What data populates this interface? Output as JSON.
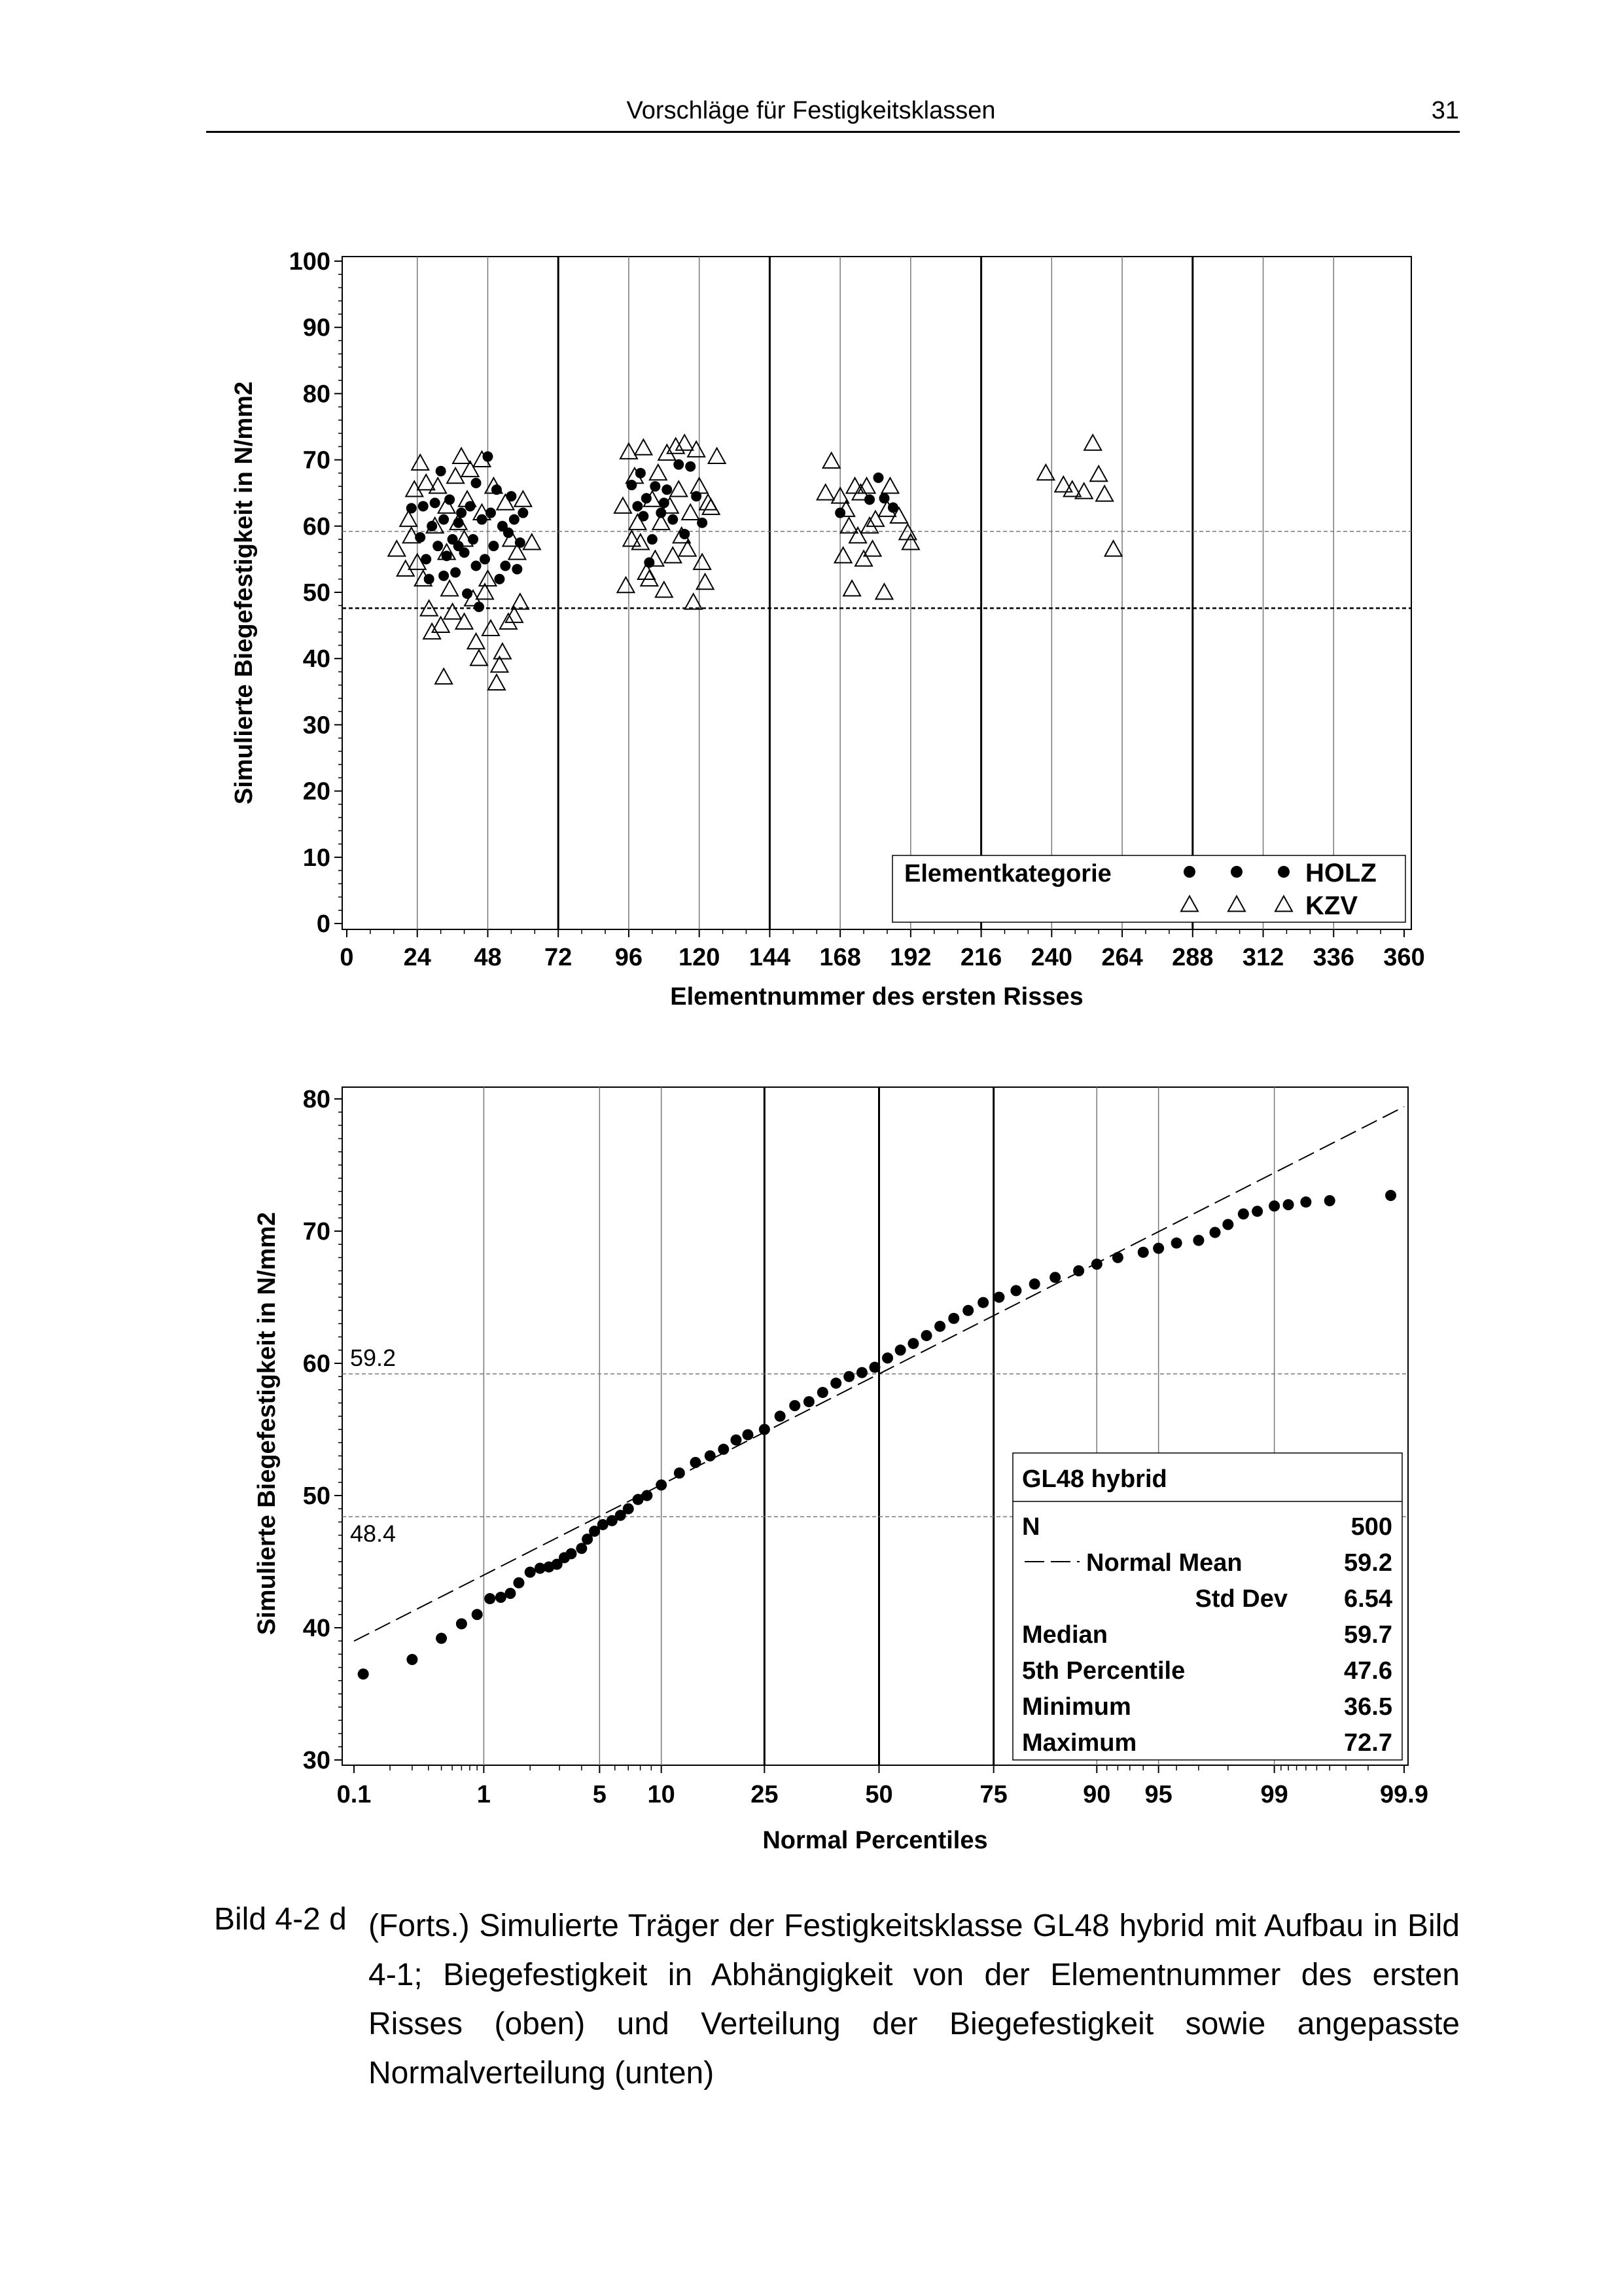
{
  "header": {
    "title": "Vorschläge für Festigkeitsklassen",
    "page_number": "31"
  },
  "caption": {
    "label": "Bild 4-2 d",
    "text": "(Forts.) Simulierte Träger der Festigkeitsklasse GL48 hybrid mit Aufbau in Bild 4-1; Biegefestigkeit in Abhängigkeit von der Elementnummer des ersten Risses (oben) und Verteilung der Biegefestigkeit sowie angepasste Normalverteilung (unten)"
  },
  "chart_data": [
    {
      "type": "scatter",
      "xlabel": "Elementnummer des ersten Risses",
      "ylabel": "Simulierte Biegefestigkeit in N/mm2",
      "xlim": [
        0,
        360
      ],
      "ylim": [
        0,
        100
      ],
      "xticks": [
        "0",
        "24",
        "48",
        "72",
        "96",
        "120",
        "144",
        "168",
        "192",
        "216",
        "240",
        "264",
        "288",
        "312",
        "336",
        "360"
      ],
      "yticks": [
        "0",
        "10",
        "20",
        "30",
        "40",
        "50",
        "60",
        "70",
        "80",
        "90",
        "100"
      ],
      "grid": "vertical lines every 24, heavier every 72",
      "reference_lines": [
        59.2,
        47.6
      ],
      "legend": {
        "title": "Elementkategorie",
        "placement": "bottom-right",
        "entries": [
          {
            "name": "HOLZ",
            "marker": "filled-circle"
          },
          {
            "name": "KZV",
            "marker": "open-triangle"
          }
        ]
      },
      "series": [
        {
          "name": "HOLZ",
          "points": [
            [
              22,
              62.7
            ],
            [
              25,
              58.3
            ],
            [
              26,
              63
            ],
            [
              27,
              55
            ],
            [
              28,
              52
            ],
            [
              29,
              60
            ],
            [
              30,
              63.5
            ],
            [
              31,
              57
            ],
            [
              32,
              68.3
            ],
            [
              33,
              61
            ],
            [
              34,
              55.5
            ],
            [
              35,
              64
            ],
            [
              36,
              58
            ],
            [
              37,
              53
            ],
            [
              38,
              60.5
            ],
            [
              39,
              62
            ],
            [
              40,
              56
            ],
            [
              41,
              49.8
            ],
            [
              42,
              63
            ],
            [
              43,
              58
            ],
            [
              44,
              66.5
            ],
            [
              45,
              47.8
            ],
            [
              46,
              61
            ],
            [
              47,
              55
            ],
            [
              48,
              70.5
            ],
            [
              49,
              62
            ],
            [
              50,
              57
            ],
            [
              51,
              65.5
            ],
            [
              52,
              52
            ],
            [
              53,
              60
            ],
            [
              54,
              54
            ],
            [
              55,
              59
            ],
            [
              56,
              64.5
            ],
            [
              57,
              61
            ],
            [
              58,
              53.5
            ],
            [
              59,
              57.5
            ],
            [
              60,
              62
            ],
            [
              44,
              54
            ],
            [
              38,
              57
            ],
            [
              33,
              52.5
            ],
            [
              97,
              66.2
            ],
            [
              99,
              63
            ],
            [
              100,
              68
            ],
            [
              101,
              61.5
            ],
            [
              102,
              64.2
            ],
            [
              103,
              54.5
            ],
            [
              105,
              66
            ],
            [
              107,
              62
            ],
            [
              109,
              65.5
            ],
            [
              111,
              61
            ],
            [
              113,
              69.3
            ],
            [
              115,
              58.8
            ],
            [
              117,
              69
            ],
            [
              119,
              64.5
            ],
            [
              121,
              60.5
            ],
            [
              108,
              63.5
            ],
            [
              104,
              58
            ],
            [
              168,
              62
            ],
            [
              178,
              64
            ],
            [
              181,
              67.3
            ],
            [
              183,
              64.2
            ],
            [
              186,
              62.8
            ]
          ]
        },
        {
          "name": "KZV",
          "points": [
            [
              17,
              56.5
            ],
            [
              20,
              53.5
            ],
            [
              21,
              61
            ],
            [
              22,
              58.5
            ],
            [
              23,
              65.5
            ],
            [
              24,
              54.5
            ],
            [
              25,
              69.5
            ],
            [
              26,
              52
            ],
            [
              27,
              66.5
            ],
            [
              28,
              47.5
            ],
            [
              29,
              44
            ],
            [
              30,
              60
            ],
            [
              31,
              66
            ],
            [
              32,
              45
            ],
            [
              33,
              37.2
            ],
            [
              34,
              63
            ],
            [
              35,
              50.5
            ],
            [
              36,
              47
            ],
            [
              37,
              67.5
            ],
            [
              38,
              60.5
            ],
            [
              39,
              70.5
            ],
            [
              40,
              45.5
            ],
            [
              41,
              64
            ],
            [
              42,
              68.5
            ],
            [
              43,
              49
            ],
            [
              44,
              42.5
            ],
            [
              45,
              40
            ],
            [
              46,
              62
            ],
            [
              47,
              50
            ],
            [
              48,
              52
            ],
            [
              49,
              44.5
            ],
            [
              50,
              66
            ],
            [
              51,
              36.3
            ],
            [
              52,
              39
            ],
            [
              53,
              41
            ],
            [
              54,
              63.5
            ],
            [
              55,
              45.5
            ],
            [
              56,
              58
            ],
            [
              57,
              46.5
            ],
            [
              58,
              56
            ],
            [
              59,
              48.5
            ],
            [
              60,
              64
            ],
            [
              63,
              57.5
            ],
            [
              46,
              70
            ],
            [
              40,
              58
            ],
            [
              34,
              56
            ],
            [
              94,
              63
            ],
            [
              95,
              51
            ],
            [
              96,
              71.2
            ],
            [
              97,
              58
            ],
            [
              98,
              67.5
            ],
            [
              99,
              60.5
            ],
            [
              100,
              57.5
            ],
            [
              101,
              71.8
            ],
            [
              102,
              53
            ],
            [
              103,
              52
            ],
            [
              104,
              64
            ],
            [
              105,
              55
            ],
            [
              106,
              68
            ],
            [
              107,
              60.5
            ],
            [
              108,
              50.3
            ],
            [
              109,
              71
            ],
            [
              110,
              63
            ],
            [
              111,
              55.5
            ],
            [
              112,
              72
            ],
            [
              113,
              65.5
            ],
            [
              114,
              58.5
            ],
            [
              115,
              72.5
            ],
            [
              116,
              56.5
            ],
            [
              117,
              62
            ],
            [
              118,
              48.5
            ],
            [
              119,
              71.5
            ],
            [
              120,
              66
            ],
            [
              121,
              54.5
            ],
            [
              122,
              51.5
            ],
            [
              123,
              63.5
            ],
            [
              124,
              62.8
            ],
            [
              126,
              70.5
            ],
            [
              163,
              65
            ],
            [
              165,
              69.8
            ],
            [
              168,
              64.5
            ],
            [
              169,
              55.5
            ],
            [
              170,
              62.5
            ],
            [
              171,
              60
            ],
            [
              172,
              50.5
            ],
            [
              173,
              66
            ],
            [
              174,
              58.5
            ],
            [
              175,
              65
            ],
            [
              176,
              55
            ],
            [
              177,
              66
            ],
            [
              178,
              60
            ],
            [
              179,
              56.5
            ],
            [
              180,
              61
            ],
            [
              183,
              50
            ],
            [
              184,
              62.5
            ],
            [
              185,
              66
            ],
            [
              188,
              61.5
            ],
            [
              191,
              59
            ],
            [
              192,
              57.5
            ],
            [
              238,
              68
            ],
            [
              244,
              66.2
            ],
            [
              247,
              65.5
            ],
            [
              251,
              65.2
            ],
            [
              254,
              72.5
            ],
            [
              256,
              67.8
            ],
            [
              258,
              64.8
            ],
            [
              261,
              56.5
            ]
          ]
        }
      ]
    },
    {
      "type": "scatter",
      "subtype": "normal probability plot",
      "xlabel": "Normal Percentiles",
      "ylabel": "Simulierte Biegefestigkeit in N/mm2",
      "xscale": "normal-probability",
      "xticks": [
        "0.1",
        "1",
        "5",
        "10",
        "25",
        "50",
        "75",
        "90",
        "95",
        "99",
        "99.9"
      ],
      "xlim": [
        0.1,
        99.9
      ],
      "ylim": [
        30,
        80
      ],
      "yticks": [
        "30",
        "40",
        "50",
        "60",
        "70",
        "80"
      ],
      "reference_lines": [
        {
          "value": 59.2,
          "label": "59.2"
        },
        {
          "value": 48.4,
          "label": "48.4"
        }
      ],
      "fitted_line": {
        "name": "Normal",
        "style": "dashed",
        "mean": 59.2,
        "std_dev": 6.54
      },
      "points": [
        [
          0.12,
          36.5
        ],
        [
          0.3,
          37.6
        ],
        [
          0.5,
          39.2
        ],
        [
          0.7,
          40.3
        ],
        [
          0.9,
          41.0
        ],
        [
          1.1,
          42.2
        ],
        [
          1.3,
          42.3
        ],
        [
          1.5,
          42.6
        ],
        [
          1.7,
          43.4
        ],
        [
          2.0,
          44.2
        ],
        [
          2.3,
          44.5
        ],
        [
          2.6,
          44.6
        ],
        [
          2.9,
          44.8
        ],
        [
          3.2,
          45.3
        ],
        [
          3.5,
          45.6
        ],
        [
          4.0,
          46.0
        ],
        [
          4.3,
          46.7
        ],
        [
          4.7,
          47.3
        ],
        [
          5.2,
          47.8
        ],
        [
          5.8,
          48.1
        ],
        [
          6.4,
          48.5
        ],
        [
          7.0,
          49.0
        ],
        [
          7.8,
          49.7
        ],
        [
          8.6,
          50.0
        ],
        [
          10,
          50.8
        ],
        [
          12,
          51.7
        ],
        [
          14,
          52.5
        ],
        [
          16,
          53.0
        ],
        [
          18,
          53.5
        ],
        [
          20,
          54.2
        ],
        [
          22,
          54.6
        ],
        [
          25,
          55.0
        ],
        [
          28,
          56.0
        ],
        [
          31,
          56.8
        ],
        [
          34,
          57.1
        ],
        [
          37,
          57.8
        ],
        [
          40,
          58.5
        ],
        [
          43,
          59.0
        ],
        [
          46,
          59.3
        ],
        [
          49,
          59.7
        ],
        [
          52,
          60.4
        ],
        [
          55,
          61.0
        ],
        [
          58,
          61.5
        ],
        [
          61,
          62.1
        ],
        [
          64,
          62.8
        ],
        [
          67,
          63.4
        ],
        [
          70,
          64.0
        ],
        [
          73,
          64.6
        ],
        [
          76,
          65.0
        ],
        [
          79,
          65.5
        ],
        [
          82,
          66.0
        ],
        [
          85,
          66.5
        ],
        [
          88,
          67.0
        ],
        [
          90,
          67.5
        ],
        [
          92,
          68.0
        ],
        [
          94,
          68.4
        ],
        [
          95,
          68.7
        ],
        [
          96,
          69.1
        ],
        [
          97,
          69.3
        ],
        [
          97.6,
          69.9
        ],
        [
          98.0,
          70.5
        ],
        [
          98.4,
          71.3
        ],
        [
          98.7,
          71.5
        ],
        [
          99.0,
          71.9
        ],
        [
          99.2,
          72.0
        ],
        [
          99.4,
          72.2
        ],
        [
          99.6,
          72.3
        ],
        [
          99.87,
          72.7
        ]
      ],
      "inset": {
        "title": "GL48 hybrid",
        "rows": [
          {
            "label": "N",
            "value": "500"
          },
          {
            "label": "Normal Mean",
            "value": "59.2"
          },
          {
            "label": "Std Dev",
            "value": "6.54"
          },
          {
            "label": "Median",
            "value": "59.7"
          },
          {
            "label": "5th Percentile",
            "value": "47.6"
          },
          {
            "label": "Minimum",
            "value": "36.5"
          },
          {
            "label": "Maximum",
            "value": "72.7"
          }
        ]
      }
    }
  ]
}
